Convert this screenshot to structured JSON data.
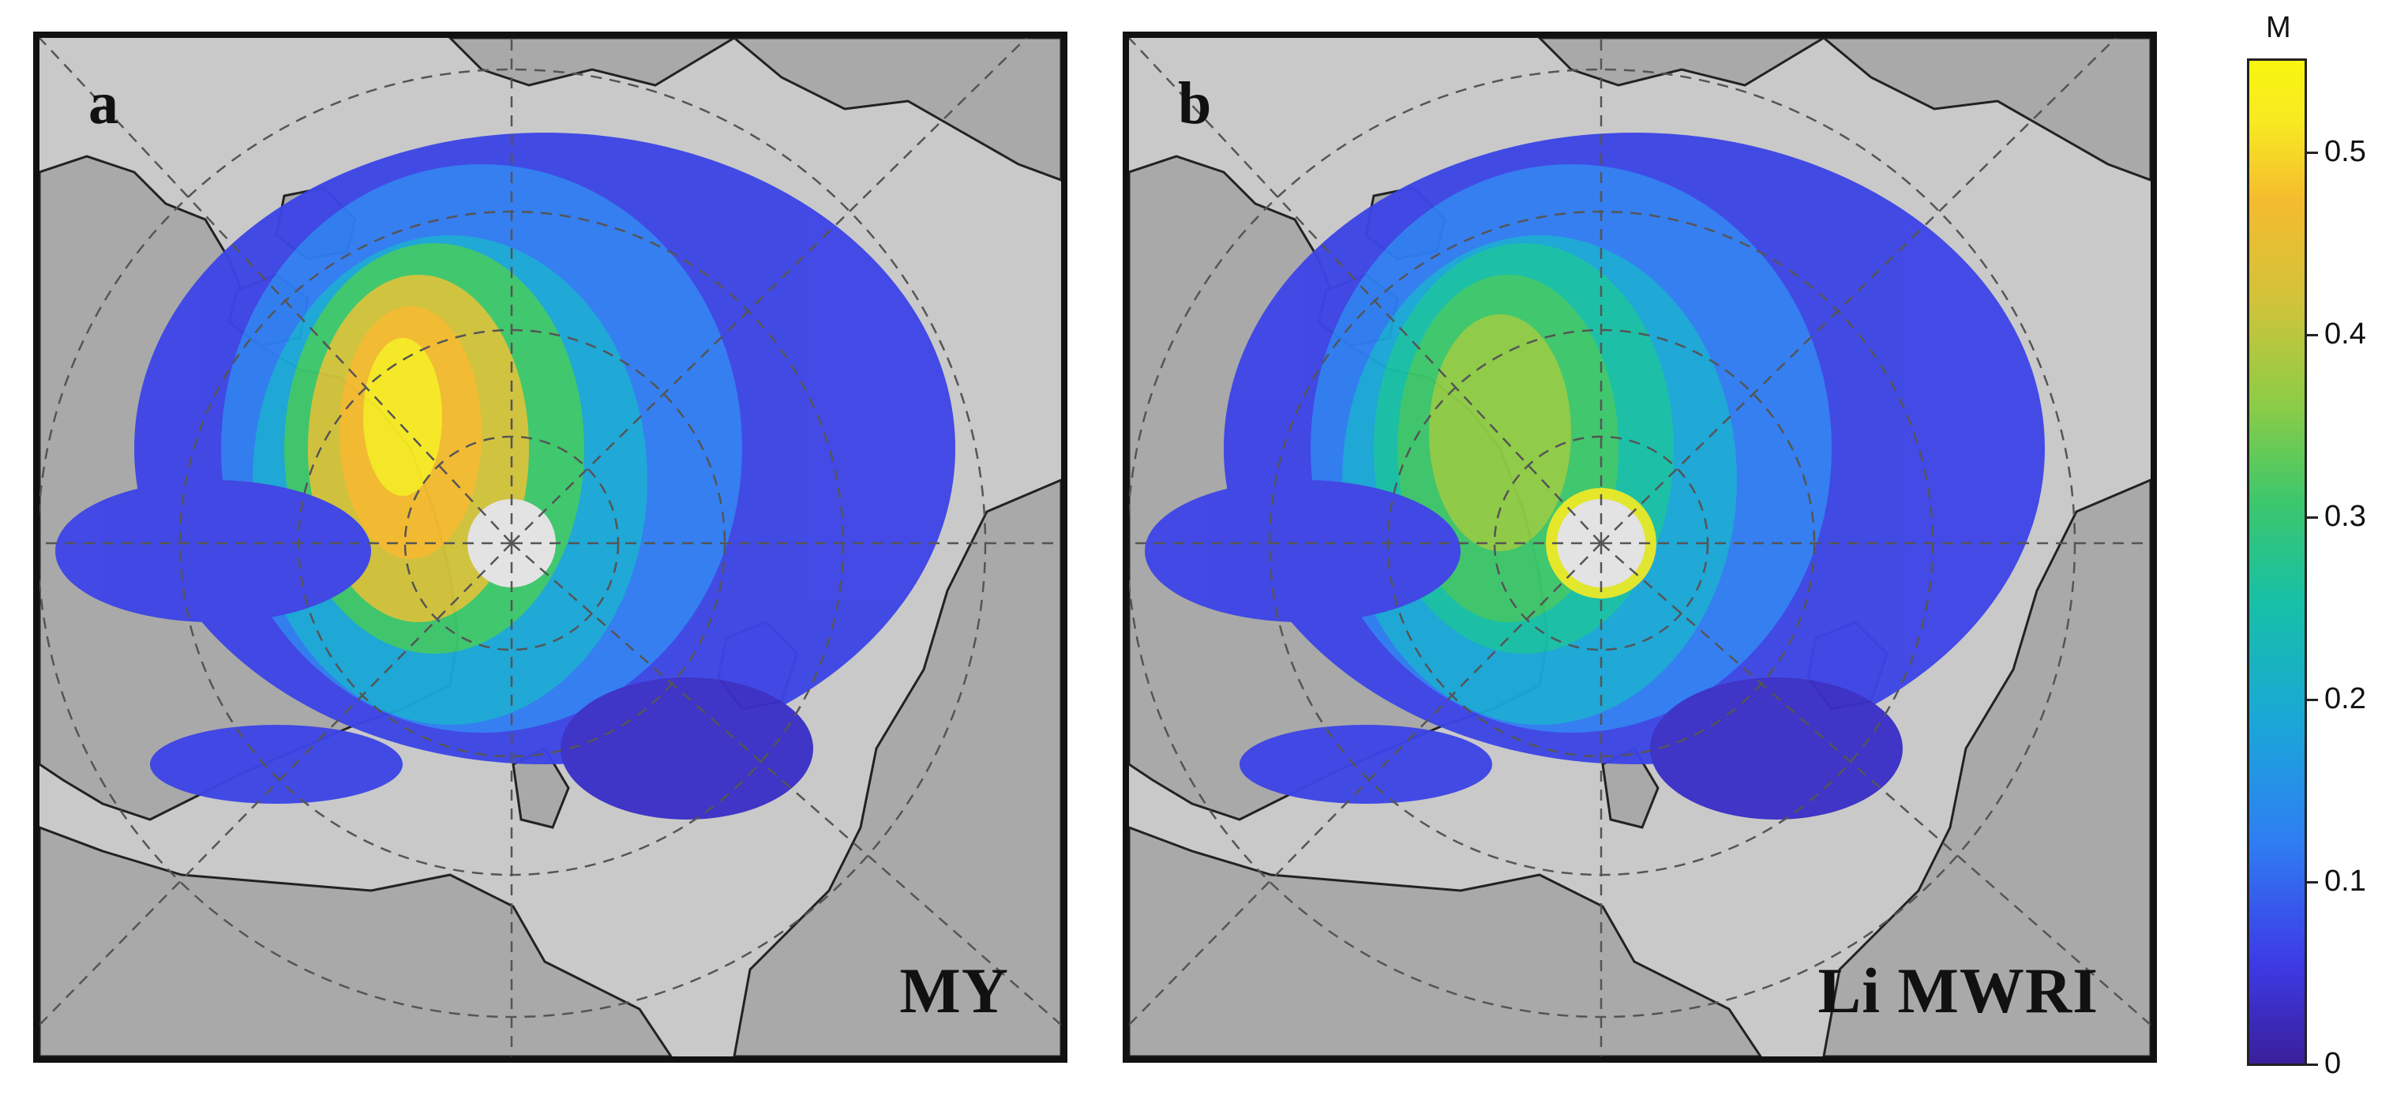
{
  "panels": [
    {
      "letter": "a",
      "title": "MY"
    },
    {
      "letter": "b",
      "title": "Li MWRI"
    }
  ],
  "colorbar": {
    "unit": "M",
    "ticks": [
      "0",
      "0.1",
      "0.2",
      "0.3",
      "0.4",
      "0.5"
    ],
    "range": [
      0,
      0.55
    ],
    "colors": [
      "#3a1f9a",
      "#3d3ae6",
      "#2f7df2",
      "#1aa7d8",
      "#17c0a6",
      "#3cc76b",
      "#8ecc45",
      "#d1c33a",
      "#f4bb2e",
      "#f9f50f"
    ]
  },
  "map": {
    "land_color": "#a9a9a9",
    "ocean_color": "#c9c9c9",
    "pole_hole_color": "#e3e3e3",
    "gridline_color": "#555555"
  }
}
